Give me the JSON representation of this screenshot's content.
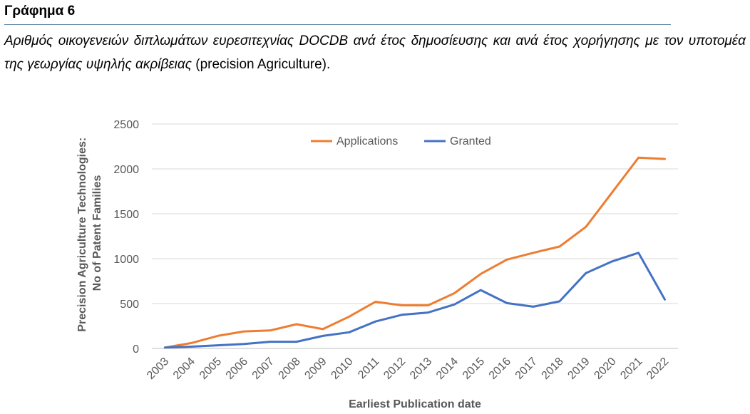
{
  "header": {
    "title": "Γράφημα 6",
    "caption_italic": "Αριθμός οικογενειών διπλωμάτων ευρεσιτεχνίας DOCDB ανά έτος δημοσίευσης και ανά έτος χορήγησης με τον υποτομέα της γεωργίας υψηλής ακρίβειας",
    "caption_plain": " (precision Agriculture)."
  },
  "colors": {
    "applications": "#ed7d31",
    "granted": "#4472c4",
    "grid": "#d9d9d9",
    "axis": "#bfbfbf"
  },
  "chart_data": {
    "type": "line",
    "title": "",
    "xlabel": "Earliest Publication date",
    "ylabel_lines": [
      "Precision Agriculture Technologies:",
      "No of Patent Families"
    ],
    "ylim": [
      0,
      2500
    ],
    "yticks": [
      0,
      500,
      1000,
      1500,
      2000,
      2500
    ],
    "grid": true,
    "legend_position": "top-center",
    "categories": [
      "2003",
      "2004",
      "2005",
      "2006",
      "2007",
      "2008",
      "2009",
      "2010",
      "2011",
      "2012",
      "2013",
      "2014",
      "2015",
      "2016",
      "2017",
      "2018",
      "2019",
      "2020",
      "2021",
      "2022"
    ],
    "series": [
      {
        "name": "Applications",
        "color": "#ed7d31",
        "values": [
          10,
          60,
          140,
          190,
          200,
          270,
          215,
          355,
          520,
          480,
          480,
          615,
          830,
          990,
          1065,
          1135,
          1355,
          1740,
          2125,
          2110
        ]
      },
      {
        "name": "Granted",
        "color": "#4472c4",
        "values": [
          10,
          20,
          35,
          50,
          75,
          75,
          140,
          180,
          300,
          375,
          400,
          490,
          650,
          505,
          465,
          525,
          840,
          970,
          1065,
          545
        ]
      }
    ]
  }
}
